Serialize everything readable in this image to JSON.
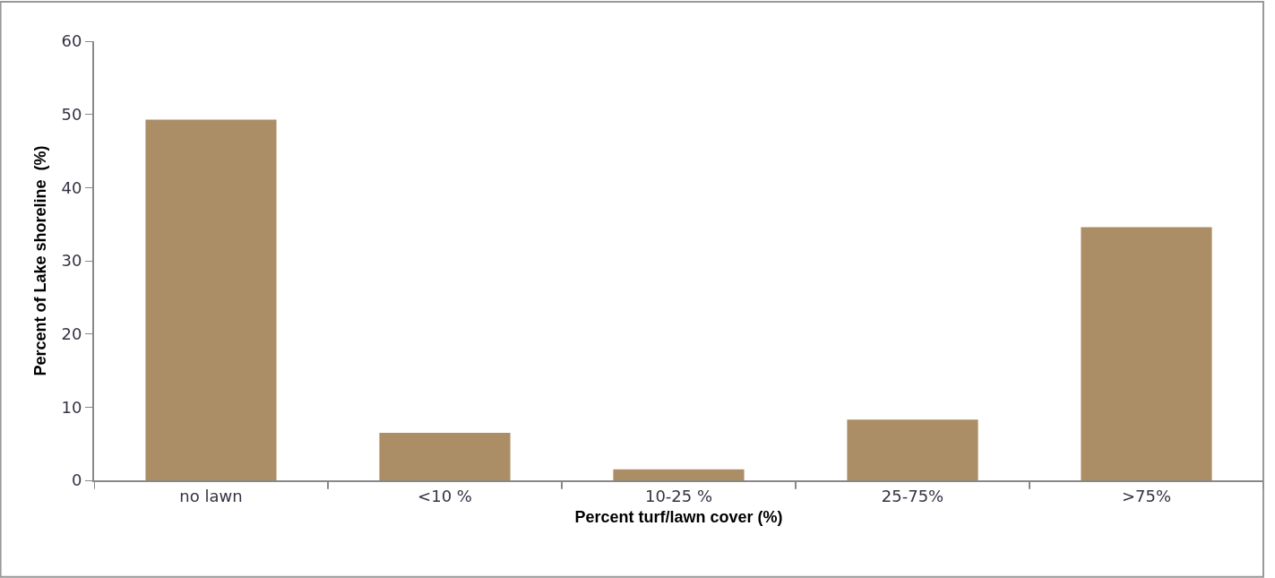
{
  "chart_data": {
    "type": "bar",
    "xlabel": "Percent turf/lawn cover (%)",
    "ylabel": "Percent of Lake shoreline  (%)",
    "categories": [
      "no lawn",
      "<10 %",
      "10-25 %",
      "25-75%",
      ">75%"
    ],
    "values": [
      49.3,
      6.5,
      1.5,
      8.3,
      34.6
    ],
    "color": "#ac8e66",
    "ylim": [
      0,
      60
    ],
    "yticks": [
      0,
      10,
      20,
      30,
      40,
      50,
      60
    ],
    "grid": false,
    "legend": false
  }
}
